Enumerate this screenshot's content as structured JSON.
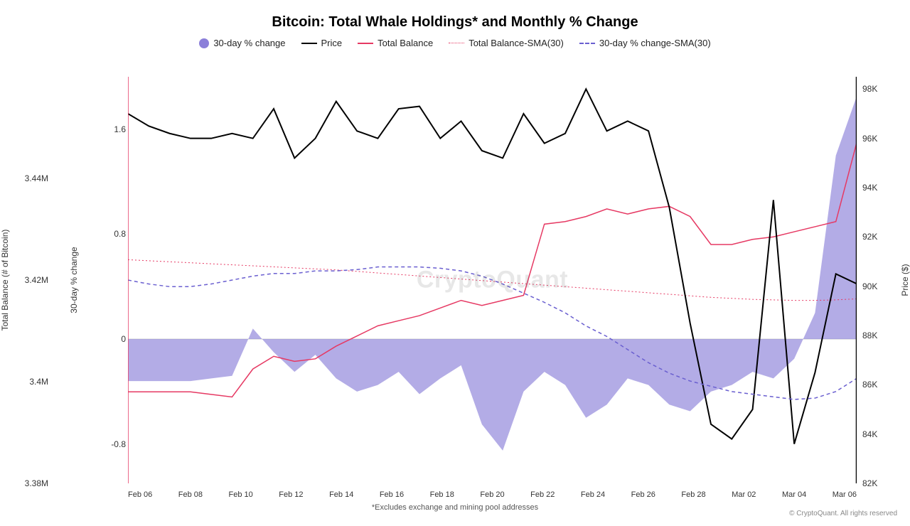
{
  "title": "Bitcoin: Total Whale Holdings* and Monthly % Change",
  "title_fontsize": 20,
  "legend": {
    "pct": "30-day % change",
    "price": "Price",
    "balance": "Total Balance",
    "balance_sma": "Total Balance-SMA(30)",
    "pct_sma": "30-day % change-SMA(30)"
  },
  "footnote": "*Excludes exchange and mining pool addresses",
  "watermark": "CryptoQuant",
  "copyright": "© CryptoQuant. All rights reserved",
  "colors": {
    "pct_fill": "#8b7fd9",
    "pct_fill_opacity": 0.65,
    "price": "#000000",
    "balance": "#e63963",
    "balance_sma": "#e63963",
    "pct_sma": "#6a5fd0",
    "grid": "#e8e8e8",
    "zero_line": "#cfcfcf",
    "background": "#ffffff",
    "axis_border": "#000000"
  },
  "axes": {
    "x": {
      "ticks": [
        "Feb 06",
        "Feb 08",
        "Feb 10",
        "Feb 12",
        "Feb 14",
        "Feb 16",
        "Feb 18",
        "Feb 20",
        "Feb 22",
        "Feb 24",
        "Feb 26",
        "Feb 28",
        "Mar 02",
        "Mar 04",
        "Mar 06"
      ]
    },
    "balance_y": {
      "label": "Total Balance (# of Bitcoin)",
      "ticks": [
        "3.44M",
        "3.42M",
        "3.4M",
        "3.38M"
      ],
      "min": 3380000,
      "max": 3460000
    },
    "pct_y": {
      "label": "30-day % change",
      "ticks": [
        "1.6",
        "0.8",
        "0",
        "-0.8"
      ],
      "min": -1.1,
      "max": 2.0
    },
    "price_y": {
      "label": "Price ($)",
      "ticks": [
        "98K",
        "96K",
        "94K",
        "92K",
        "90K",
        "88K",
        "86K",
        "84K",
        "82K"
      ],
      "min": 82000,
      "max": 98500
    }
  },
  "series": {
    "pct_change": [
      -0.32,
      -0.32,
      -0.32,
      -0.32,
      -0.3,
      -0.28,
      0.08,
      -0.1,
      -0.25,
      -0.12,
      -0.3,
      -0.4,
      -0.35,
      -0.25,
      -0.42,
      -0.3,
      -0.2,
      -0.65,
      -0.85,
      -0.4,
      -0.25,
      -0.35,
      -0.6,
      -0.5,
      -0.3,
      -0.35,
      -0.5,
      -0.55,
      -0.4,
      -0.35,
      -0.25,
      -0.3,
      -0.15,
      0.2,
      1.4,
      1.85
    ],
    "price": [
      97000,
      96500,
      96200,
      96000,
      96000,
      96200,
      96000,
      97200,
      95200,
      96000,
      97500,
      96300,
      96000,
      97200,
      97300,
      96000,
      96700,
      95500,
      95200,
      97000,
      95800,
      96200,
      98000,
      96300,
      96700,
      96300,
      93200,
      88500,
      84400,
      83800,
      85000,
      93500,
      83600,
      86500,
      90500,
      90100
    ],
    "balance": [
      3398000,
      3398000,
      3398000,
      3398000,
      3397500,
      3397000,
      3402500,
      3405000,
      3404000,
      3404500,
      3407000,
      3409000,
      3411000,
      3412000,
      3413000,
      3414500,
      3416000,
      3415000,
      3416000,
      3417000,
      3431000,
      3431500,
      3432500,
      3434000,
      3433000,
      3434000,
      3434500,
      3432500,
      3427000,
      3427000,
      3428000,
      3428500,
      3429500,
      3430500,
      3431500,
      3447000
    ],
    "balance_sma": [
      3424000,
      3423800,
      3423600,
      3423400,
      3423200,
      3423000,
      3422800,
      3422600,
      3422400,
      3422200,
      3422000,
      3421700,
      3421400,
      3421100,
      3420800,
      3420500,
      3420200,
      3419900,
      3419600,
      3419300,
      3419000,
      3418700,
      3418400,
      3418100,
      3417800,
      3417500,
      3417200,
      3416900,
      3416600,
      3416400,
      3416200,
      3416100,
      3416000,
      3416000,
      3416100,
      3416300
    ],
    "pct_sma": [
      0.45,
      0.42,
      0.4,
      0.4,
      0.42,
      0.45,
      0.48,
      0.5,
      0.5,
      0.52,
      0.52,
      0.53,
      0.55,
      0.55,
      0.55,
      0.54,
      0.52,
      0.48,
      0.42,
      0.35,
      0.28,
      0.2,
      0.1,
      0.02,
      -0.08,
      -0.18,
      -0.26,
      -0.32,
      -0.36,
      -0.4,
      -0.42,
      -0.44,
      -0.46,
      -0.45,
      -0.4,
      -0.3
    ]
  },
  "line_widths": {
    "price": 2,
    "balance": 1.5,
    "balance_sma": 1,
    "pct_sma": 1.5
  },
  "dash": {
    "balance_sma": "2,3",
    "pct_sma": "5,4"
  }
}
